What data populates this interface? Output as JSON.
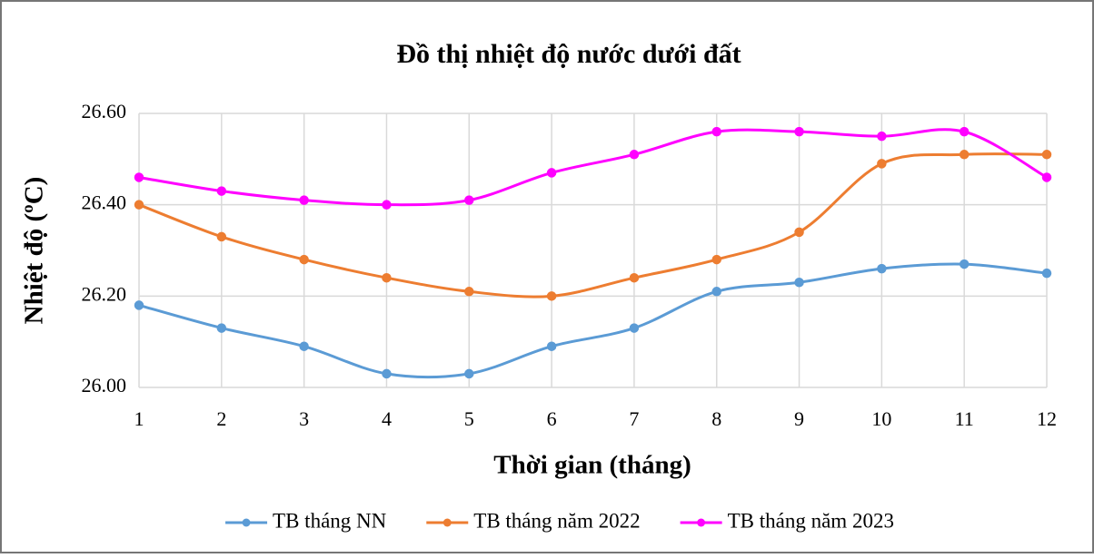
{
  "chart_data": {
    "type": "line",
    "title": "Đồ thị nhiệt độ nước dưới đất",
    "x_label": "Thời gian (tháng)",
    "y_label": "Nhiệt độ (ºC)",
    "x": [
      1,
      2,
      3,
      4,
      5,
      6,
      7,
      8,
      9,
      10,
      11,
      12
    ],
    "xlim": [
      1,
      12
    ],
    "xticks": [
      1,
      2,
      3,
      4,
      5,
      6,
      7,
      8,
      9,
      10,
      11,
      12
    ],
    "ylim": [
      26.0,
      26.6
    ],
    "yticks": [
      {
        "value": 26.0,
        "label": "26.00"
      },
      {
        "value": 26.2,
        "label": "26.20"
      },
      {
        "value": 26.4,
        "label": "26.40"
      },
      {
        "value": 26.6,
        "label": "26.60"
      }
    ],
    "grid": true,
    "smooth": true,
    "legend": "bottom",
    "series": [
      {
        "name": "TB tháng NN",
        "color": "#5b9bd5",
        "values": [
          26.18,
          26.13,
          26.09,
          26.03,
          26.03,
          26.09,
          26.13,
          26.21,
          26.23,
          26.26,
          26.27,
          26.25
        ]
      },
      {
        "name": "TB tháng năm 2022",
        "color": "#ed7d31",
        "values": [
          26.4,
          26.33,
          26.28,
          26.24,
          26.21,
          26.2,
          26.24,
          26.28,
          26.34,
          26.49,
          26.51,
          26.51
        ]
      },
      {
        "name": "TB tháng năm 2023",
        "color": "#ff00ff",
        "values": [
          26.46,
          26.43,
          26.41,
          26.4,
          26.41,
          26.47,
          26.51,
          26.56,
          26.56,
          26.55,
          26.56,
          26.46
        ]
      }
    ]
  }
}
